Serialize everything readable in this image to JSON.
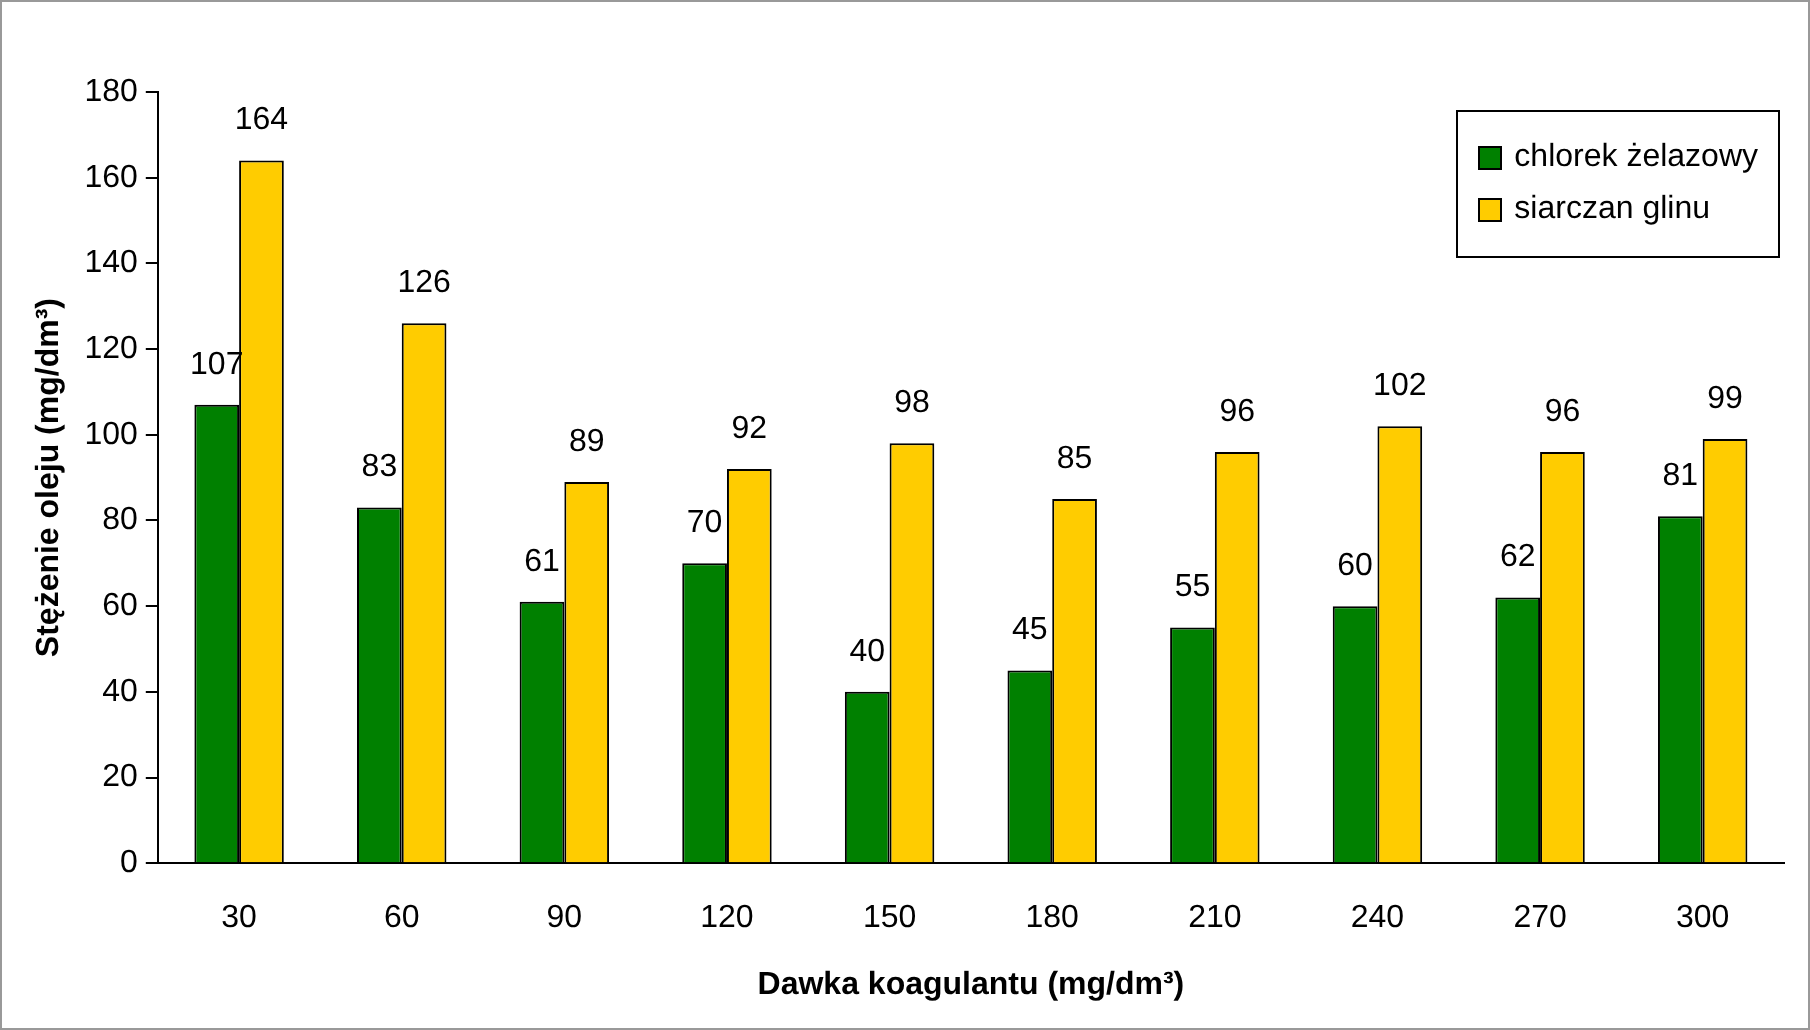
{
  "chart_data": {
    "type": "bar",
    "xlabel": "Dawka koagulantu (mg/dm³)",
    "ylabel": "Stężenie oleju (mg/dm³)",
    "categories": [
      "30",
      "60",
      "90",
      "120",
      "150",
      "180",
      "210",
      "240",
      "270",
      "300"
    ],
    "series": [
      {
        "name": "chlorek żelazowy",
        "color": "#008000",
        "values": [
          107,
          83,
          61,
          70,
          40,
          45,
          55,
          60,
          62,
          81
        ]
      },
      {
        "name": "siarczan glinu",
        "color": "#ffcc00",
        "values": [
          164,
          126,
          89,
          92,
          98,
          85,
          96,
          102,
          96,
          99
        ]
      }
    ],
    "ylim": [
      0,
      180
    ],
    "yticks": [
      0,
      20,
      40,
      60,
      80,
      100,
      120,
      140,
      160,
      180
    ],
    "grid": false,
    "legend": "top right",
    "data_labels": true
  }
}
